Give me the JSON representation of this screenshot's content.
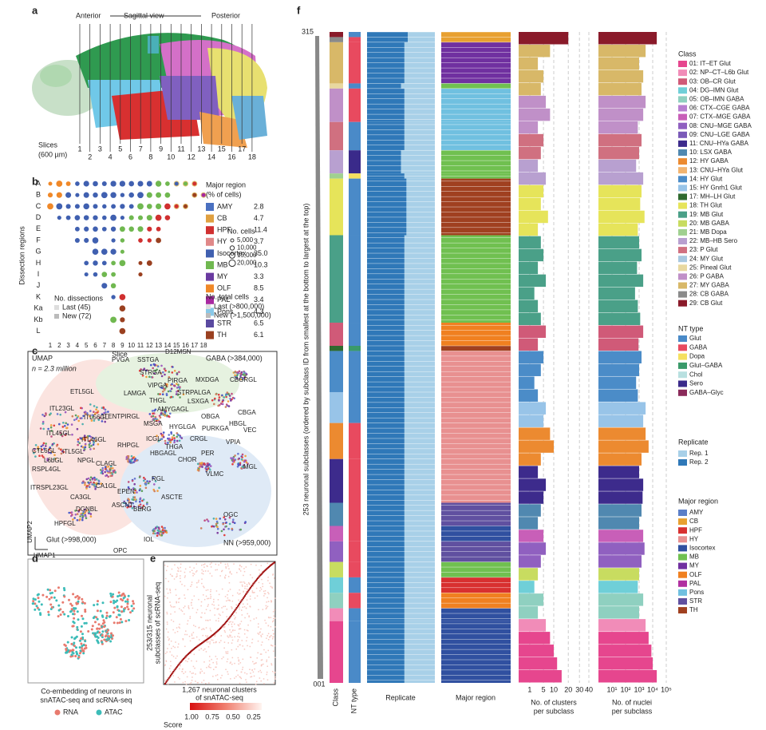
{
  "panel_labels": [
    "a",
    "b",
    "c",
    "d",
    "e",
    "f"
  ],
  "panel_a": {
    "anterior": "Anterior",
    "view": "Sagittal view",
    "posterior": "Posterior",
    "slices": "Slices",
    "thickness": "(600 µm)",
    "slice_numbers": [
      "1",
      "2",
      "3",
      "4",
      "5",
      "6",
      "7",
      "8",
      "9",
      "10",
      "11",
      "12",
      "13",
      "14",
      "15",
      "16",
      "17",
      "18"
    ]
  },
  "panel_b": {
    "y_label": "Dissection regions",
    "x_label": "Slice",
    "rows": [
      "A",
      "B",
      "C",
      "D",
      "E",
      "F",
      "G",
      "H",
      "I",
      "J",
      "K",
      "Ka",
      "Kb",
      "L"
    ],
    "columns": [
      "1",
      "2",
      "3",
      "4",
      "5",
      "6",
      "7",
      "8",
      "9",
      "10",
      "11",
      "12",
      "13",
      "14",
      "15",
      "16",
      "17",
      "18"
    ],
    "legend_title": "Major region",
    "legend_subtitle": "(% of cells)",
    "regions": [
      {
        "name": "AMY",
        "pct": "2.8",
        "color": "#4a70c0"
      },
      {
        "name": "CB",
        "pct": "4.7",
        "color": "#e0a040"
      },
      {
        "name": "HPF",
        "pct": "11.4",
        "color": "#d03030"
      },
      {
        "name": "HY",
        "pct": "3.7",
        "color": "#e08888"
      },
      {
        "name": "Isocortex",
        "pct": "35.0",
        "color": "#4060b0"
      },
      {
        "name": "MB",
        "pct": "10.3",
        "color": "#70b850"
      },
      {
        "name": "MY",
        "pct": "3.3",
        "color": "#6a3aa0"
      },
      {
        "name": "OLF",
        "pct": "8.5",
        "color": "#f08828"
      },
      {
        "name": "PAL",
        "pct": "3.4",
        "color": "#a828a0"
      },
      {
        "name": "Pons",
        "pct": "4.3",
        "color": "#88c8e8"
      },
      {
        "name": "STR",
        "pct": "6.5",
        "color": "#5a4aa0"
      },
      {
        "name": "TH",
        "pct": "6.1",
        "color": "#9a4020"
      }
    ],
    "cells_title": "No. cells",
    "cells": [
      "5,000",
      "10,000",
      "15,000",
      "20,000"
    ],
    "dissections_title": "No. dissections",
    "dissections": [
      "Last (45)",
      "New (72)"
    ],
    "total_title": "No. total cells",
    "total": [
      "Last (>800,000)",
      "New (>1,500,000)"
    ]
  },
  "panel_c": {
    "title": "UMAP",
    "n": "n = 2.3 million",
    "gaba": "GABA (>384,000)",
    "glut": "Glut (>998,000)",
    "nn": "NN (>959,000)",
    "axis_y": "UMAP2",
    "axis_x": "UMAP1",
    "labels": [
      "PVGA",
      "SSTGA",
      "D12MSN",
      "STRGA",
      "PIRGA",
      "MXDGA",
      "VIPGA",
      "LAMGA",
      "THGL",
      "ETL5GL",
      "STRPALGA",
      "LSXGA",
      "CBGRGL",
      "AMYGAGL",
      "ITL23GL",
      "ITL56GL",
      "ITENTPIRGL",
      "MSGA",
      "OBGA",
      "HBGL",
      "CBGA",
      "ITL45GL",
      "ITL46GL",
      "RHPGL",
      "ICGL",
      "HYGLGA",
      "PURKGA",
      "CRGL",
      "VPIA",
      "VEC",
      "CTL6GL",
      "ITL5GL",
      "HBGAGL",
      "THGA",
      "PER",
      "L6bGL",
      "NPGL",
      "CHOR",
      "MGL",
      "RSPL4GL",
      "CLAGL",
      "VLMC",
      "ITRSPL23GL",
      "CA1GL",
      "RGL",
      "CA3GL",
      "EPEN",
      "ASCTE",
      "ASCNT",
      "BERG",
      "DGNBL",
      "HPFGL",
      "IOL",
      "OGC",
      "OPC"
    ]
  },
  "panel_d": {
    "caption": [
      "Co-embedding of neurons in",
      "snATAC-seq and scRNA-seq"
    ],
    "legend": [
      {
        "name": "RNA",
        "color": "#e87a6e"
      },
      {
        "name": "ATAC",
        "color": "#3cbcb8"
      }
    ]
  },
  "panel_e": {
    "y_label": [
      "253/315 neuronal",
      "subclasses of scRNA-seq"
    ],
    "x_label": [
      "1,267 neuronal clusters",
      "of snATAC-seq"
    ],
    "score_ticks": [
      "1.00",
      "0.75",
      "0.50",
      "0.25"
    ],
    "score_title": "Score"
  },
  "panel_f": {
    "y_label": "253 neuronal subclasses (ordered by subclass ID from smallest at the bottom to largest at the top)",
    "top": "315",
    "bottom": "001",
    "columns": [
      "Class",
      "NT type",
      "Replicate",
      "Major region"
    ],
    "clusters_label": [
      "No. of clusters",
      "per subclass"
    ],
    "clusters_lim": [
      0,
      40
    ],
    "clusters_scale": "sqrt",
    "clusters_ticks": [
      1,
      5,
      10,
      20,
      30,
      40
    ],
    "nuclei_label": [
      "No. of nuclei",
      "per subclass"
    ],
    "nuclei_lim": [
      1,
      100000
    ],
    "nuclei_scale": "log",
    "nuclei_ticks": [
      {
        "value": 10,
        "label": "10¹"
      },
      {
        "value": 100,
        "label": "10²"
      },
      {
        "value": 1000,
        "label": "10³"
      },
      {
        "value": 10000,
        "label": "10⁴"
      },
      {
        "value": 100000,
        "label": "10⁵"
      }
    ],
    "class_title": "Class",
    "classes": [
      {
        "name": "01: IT–ET Glut",
        "color": "#e6468e"
      },
      {
        "name": "02: NP–CT–L6b Glut",
        "color": "#f18cb8"
      },
      {
        "name": "03: OB–CR Glut",
        "color": "#d05a78"
      },
      {
        "name": "04: DG–IMN Glut",
        "color": "#6fcfd8"
      },
      {
        "name": "05: OB–IMN GABA",
        "color": "#8fd0c0"
      },
      {
        "name": "06: CTX–CGE GABA",
        "color": "#b77fd0"
      },
      {
        "name": "07: CTX–MGE GABA",
        "color": "#c85fb8"
      },
      {
        "name": "08: CNU–MGE GABA",
        "color": "#9060c0"
      },
      {
        "name": "09: CNU–LGE GABA",
        "color": "#7a5ab8"
      },
      {
        "name": "11: CNU–HYa GABA",
        "color": "#3d2b8c"
      },
      {
        "name": "10: LSX GABA",
        "color": "#5088b0"
      },
      {
        "name": "12: HY GABA",
        "color": "#ec8a30"
      },
      {
        "name": "13: CNU–HYa Glut",
        "color": "#f2b470"
      },
      {
        "name": "14: HY Glut",
        "color": "#4b8cc8"
      },
      {
        "name": "15: HY Gnrh1 Glut",
        "color": "#98c4e8"
      },
      {
        "name": "17: MH–LH Glut",
        "color": "#2f6a2f"
      },
      {
        "name": "18: TH Glut",
        "color": "#e6e45a"
      },
      {
        "name": "19: MB Glut",
        "color": "#4aa088"
      },
      {
        "name": "20: MB GABA",
        "color": "#c8dc60"
      },
      {
        "name": "21: MB Dopa",
        "color": "#a0d090"
      },
      {
        "name": "22: MB–HB Sero",
        "color": "#b8a0d0"
      },
      {
        "name": "23: P Glut",
        "color": "#d07080"
      },
      {
        "name": "24: MY Glut",
        "color": "#a8c8e0"
      },
      {
        "name": "25: Pineal Glut",
        "color": "#e8d8a0"
      },
      {
        "name": "26: P GABA",
        "color": "#c090c8"
      },
      {
        "name": "27: MY GABA",
        "color": "#d8b868"
      },
      {
        "name": "28: CB GABA",
        "color": "#8a8a8a"
      },
      {
        "name": "29: CB Glut",
        "color": "#8a1a2a"
      }
    ],
    "nt_title": "NT type",
    "nt_types": [
      {
        "name": "Glut",
        "color": "#4a8ac8"
      },
      {
        "name": "GABA",
        "color": "#e84a5f"
      },
      {
        "name": "Dopa",
        "color": "#f5e060"
      },
      {
        "name": "Glut–GABA",
        "color": "#3a9a6a"
      },
      {
        "name": "Chol",
        "color": "#b8e0e0"
      },
      {
        "name": "Sero",
        "color": "#3a2a8a"
      },
      {
        "name": "GABA–Glyc",
        "color": "#8a2a5a"
      }
    ],
    "replicate_title": "Replicate",
    "replicates": [
      {
        "name": "Rep. 1",
        "color": "#a8d0e8"
      },
      {
        "name": "Rep. 2",
        "color": "#2f78b8"
      }
    ],
    "region_title": "Major region",
    "regions": [
      {
        "name": "AMY",
        "color": "#5b7fc8"
      },
      {
        "name": "CB",
        "color": "#e8a030"
      },
      {
        "name": "HPF",
        "color": "#d83030"
      },
      {
        "name": "HY",
        "color": "#e89090"
      },
      {
        "name": "Isocortex",
        "color": "#3050a0"
      },
      {
        "name": "MB",
        "color": "#70c050"
      },
      {
        "name": "MY",
        "color": "#7030a0"
      },
      {
        "name": "OLF",
        "color": "#f08020"
      },
      {
        "name": "PAL",
        "color": "#b030a0"
      },
      {
        "name": "Pons",
        "color": "#70c0e0"
      },
      {
        "name": "STR",
        "color": "#6050a0"
      },
      {
        "name": "TH",
        "color": "#a04020"
      }
    ],
    "segments": [
      {
        "class": 27,
        "rows": 2,
        "nt": 0,
        "region": 1,
        "rep2": 60
      },
      {
        "class": 26,
        "rows": 2,
        "nt": 1,
        "region": 1,
        "rep2": 60
      },
      {
        "class": 25,
        "rows": 16,
        "nt": 1,
        "region": 6,
        "rep2": 55
      },
      {
        "class": 23,
        "rows": 2,
        "nt": 0,
        "region": 5,
        "rep2": 50
      },
      {
        "class": 24,
        "rows": 13,
        "nt": 1,
        "region": 9,
        "rep2": 55
      },
      {
        "class": 21,
        "rows": 11,
        "nt": 0,
        "region": 9,
        "rep2": 55
      },
      {
        "class": 20,
        "rows": 9,
        "nt": 5,
        "region": 5,
        "rep2": 50
      },
      {
        "class": 19,
        "rows": 2,
        "nt": 2,
        "region": 5,
        "rep2": 55
      },
      {
        "class": 16,
        "rows": 22,
        "nt": 0,
        "region": 11,
        "rep2": 58
      },
      {
        "class": 17,
        "rows": 34,
        "nt": 0,
        "region": 5,
        "rep2": 55
      },
      {
        "class": 2,
        "rows": 9,
        "nt": 0,
        "region": 7,
        "rep2": 55
      },
      {
        "class": 15,
        "rows": 2,
        "nt": 3,
        "region": 11,
        "rep2": 55
      },
      {
        "class": 13,
        "rows": 16,
        "nt": 0,
        "region": 3,
        "rep2": 55
      },
      {
        "class": 14,
        "rows": 12,
        "nt": 0,
        "region": 3,
        "rep2": 55
      },
      {
        "class": 11,
        "rows": 14,
        "nt": 1,
        "region": 3,
        "rep2": 55
      },
      {
        "class": 9,
        "rows": 17,
        "nt": 1,
        "region": 3,
        "rep2": 55
      },
      {
        "class": 10,
        "rows": 9,
        "nt": 1,
        "region": 10,
        "rep2": 55
      },
      {
        "class": 6,
        "rows": 6,
        "nt": 1,
        "region": 4,
        "rep2": 55
      },
      {
        "class": 7,
        "rows": 8,
        "nt": 1,
        "region": 10,
        "rep2": 55
      },
      {
        "class": 18,
        "rows": 6,
        "nt": 1,
        "region": 5,
        "rep2": 55
      },
      {
        "class": 3,
        "rows": 6,
        "nt": 0,
        "region": 2,
        "rep2": 55
      },
      {
        "class": 4,
        "rows": 6,
        "nt": 1,
        "region": 7,
        "rep2": 55
      },
      {
        "class": 1,
        "rows": 5,
        "nt": 0,
        "region": 4,
        "rep2": 55
      },
      {
        "class": 0,
        "rows": 24,
        "nt": 0,
        "region": 4,
        "rep2": 55
      }
    ],
    "clusters": [
      20,
      8,
      3,
      5,
      4,
      6,
      8,
      3,
      5,
      4,
      3,
      6,
      5,
      4,
      7,
      3,
      4,
      5,
      3,
      6,
      2,
      3,
      4,
      6,
      3,
      5,
      4,
      2,
      3,
      6,
      5,
      8,
      10,
      4,
      3,
      6,
      5,
      4,
      3,
      5,
      6,
      4,
      3,
      2,
      5,
      3,
      6,
      8,
      10,
      12,
      15
    ],
    "nuclei": [
      20000,
      3000,
      1000,
      2000,
      1500,
      3000,
      2000,
      800,
      1500,
      1000,
      600,
      2000,
      1500,
      1200,
      2500,
      800,
      1000,
      1500,
      700,
      2000,
      500,
      800,
      1200,
      2000,
      900,
      1500,
      1000,
      600,
      800,
      3000,
      2000,
      3000,
      5000,
      1500,
      1000,
      2000,
      1800,
      1500,
      1000,
      2000,
      2500,
      1500,
      1000,
      800,
      2000,
      1000,
      3000,
      5000,
      8000,
      10000,
      20000
    ]
  }
}
